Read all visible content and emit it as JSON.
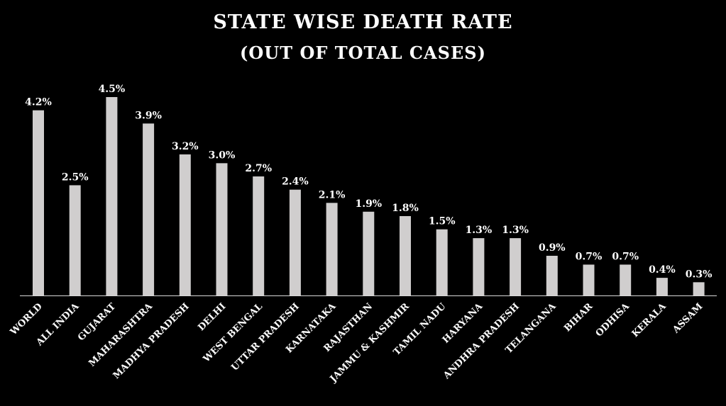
{
  "chart_data": {
    "type": "bar",
    "title": "STATE WISE DEATH RATE",
    "subtitle": "(OUT OF TOTAL CASES)",
    "xlabel": "",
    "ylabel": "",
    "ylim": [
      0,
      4.5
    ],
    "grid": false,
    "bar_color": "#d0cece",
    "categories": [
      "WORLD",
      "ALL INDIA",
      "GUJARAT",
      "MAHARASHTRA",
      "MADHYA PRADESH",
      "DELHI",
      "WEST BENGAL",
      "UTTAR PRADESH",
      "KARNATAKA",
      "RAJASTHAN",
      "JAMMU & KASHMIR",
      "TAMIL NADU",
      "HARYANA",
      "ANDHRA PRADESH",
      "TELANGANA",
      "BIHAR",
      "ODHISA",
      "KERALA",
      "ASSAM"
    ],
    "values": [
      4.2,
      2.5,
      4.5,
      3.9,
      3.2,
      3.0,
      2.7,
      2.4,
      2.1,
      1.9,
      1.8,
      1.5,
      1.3,
      1.3,
      0.9,
      0.7,
      0.7,
      0.4,
      0.3
    ],
    "data_labels": [
      "4.2%",
      "2.5%",
      "4.5%",
      "3.9%",
      "3.2%",
      "3.0%",
      "2.7%",
      "2.4%",
      "2.1%",
      "1.9%",
      "1.8%",
      "1.5%",
      "1.3%",
      "1.3%",
      "0.9%",
      "0.7%",
      "0.7%",
      "0.4%",
      "0.3%"
    ]
  }
}
